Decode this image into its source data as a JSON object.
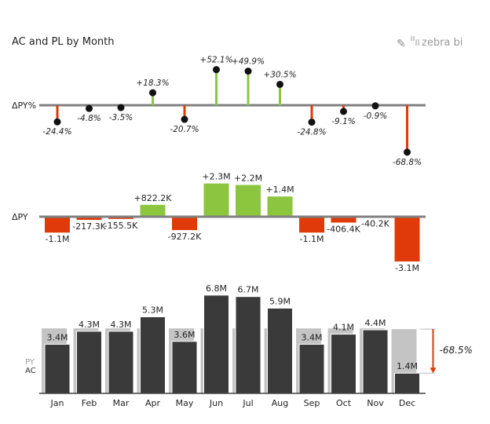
{
  "title": "AC and PL by Month",
  "logo_text": "zebra bi",
  "colors": {
    "positive": "#8cc63f",
    "negative": "#e03a0a",
    "ac": "#3a3a3a",
    "py": "#c4c4c4",
    "axis": "#808080"
  },
  "chart_data": [
    {
      "type": "lollipop",
      "axis_label": "ΔPY%",
      "categories": [
        "Jan",
        "Feb",
        "Mar",
        "Apr",
        "May",
        "Jun",
        "Jul",
        "Aug",
        "Sep",
        "Oct",
        "Nov",
        "Dec"
      ],
      "values": [
        -24.4,
        -4.8,
        -3.5,
        18.3,
        -20.7,
        52.1,
        49.9,
        30.5,
        -24.8,
        -9.1,
        -0.9,
        -68.8
      ],
      "labels": [
        "-24.4%",
        "-4.8%",
        "-3.5%",
        "+18.3%",
        "-20.7%",
        "+52.1%",
        "+49.9%",
        "+30.5%",
        "-24.8%",
        "-9.1%",
        "-0.9%",
        "-68.8%"
      ]
    },
    {
      "type": "bar",
      "axis_label": "ΔPY",
      "categories": [
        "Jan",
        "Feb",
        "Mar",
        "Apr",
        "May",
        "Jun",
        "Jul",
        "Aug",
        "Sep",
        "Oct",
        "Nov",
        "Dec"
      ],
      "values": [
        -1.1,
        -0.2173,
        -0.1555,
        0.8222,
        -0.9272,
        2.3,
        2.2,
        1.4,
        -1.1,
        -0.4064,
        -0.0402,
        -3.1
      ],
      "labels": [
        "-1.1M",
        "-217.3K",
        "-155.5K",
        "+822.2K",
        "-927.2K",
        "+2.3M",
        "+2.2M",
        "+1.4M",
        "-1.1M",
        "-406.4K",
        "-40.2K",
        "-3.1M"
      ]
    },
    {
      "type": "bar",
      "legend": [
        "PY",
        "AC"
      ],
      "categories": [
        "Jan",
        "Feb",
        "Mar",
        "Apr",
        "May",
        "Jun",
        "Jul",
        "Aug",
        "Sep",
        "Oct",
        "Nov",
        "Dec"
      ],
      "series": [
        {
          "name": "AC",
          "values": [
            3.4,
            4.3,
            4.3,
            5.3,
            3.6,
            6.8,
            6.7,
            5.9,
            3.4,
            4.1,
            4.4,
            1.4
          ],
          "labels": [
            "3.4M",
            "4.3M",
            "4.3M",
            "5.3M",
            "3.6M",
            "6.8M",
            "6.7M",
            "5.9M",
            "3.4M",
            "4.1M",
            "4.4M",
            "1.4M"
          ]
        },
        {
          "name": "PY",
          "values": [
            4.5,
            4.5,
            4.5,
            4.5,
            4.5,
            4.5,
            4.5,
            4.5,
            4.5,
            4.5,
            4.5,
            4.45
          ]
        }
      ],
      "annotation": "-68.5%"
    }
  ]
}
